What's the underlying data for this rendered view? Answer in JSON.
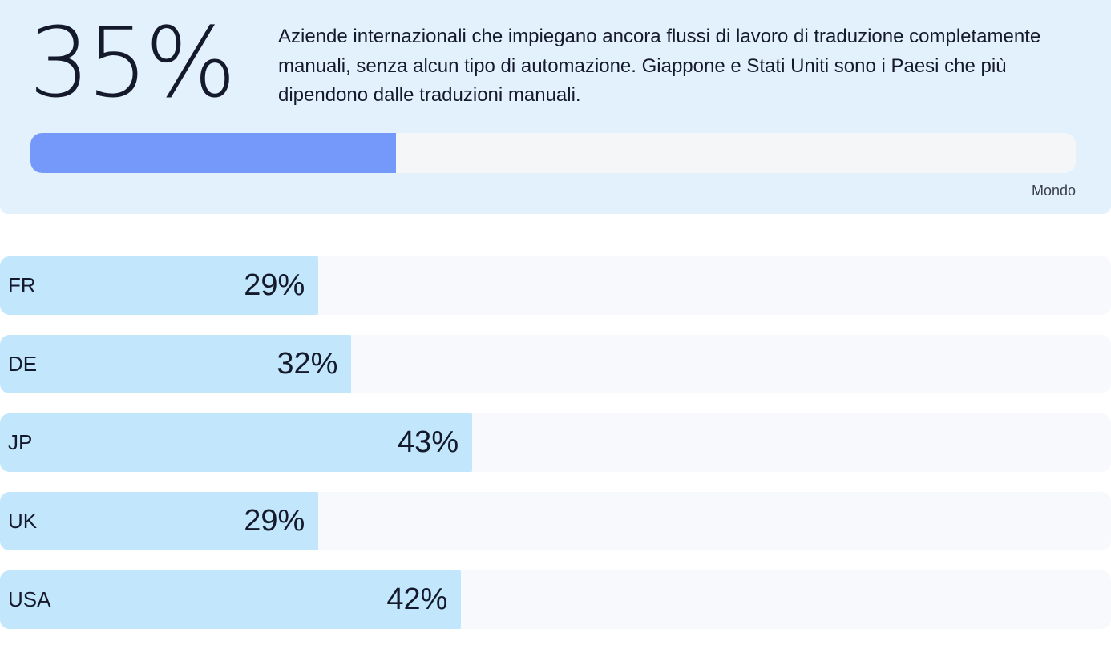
{
  "hero": {
    "percent_label": "35%",
    "value": 35,
    "description": "Aziende internazionali che impiegano ancora flussi di lavoro di traduzione completamente manuali, senza alcun tipo di automazione. Giappone e Stati Uniti sono i Paesi che più dipendono dalle traduzioni manuali.",
    "scope_label": "Mondo"
  },
  "colors": {
    "hero_background": "#e3f1fc",
    "hero_bar_fill": "#7499fb",
    "hero_bar_track": "#f5f6f8",
    "country_bar_fill": "#c2e6fb",
    "country_bar_track": "#f7f9fd",
    "text": "#141a2c"
  },
  "chart_data": [
    {
      "type": "bar",
      "categories": [
        "Mondo"
      ],
      "values": [
        35
      ],
      "ylim": [
        0,
        100
      ]
    },
    {
      "type": "bar",
      "categories": [
        "FR",
        "DE",
        "JP",
        "UK",
        "USA"
      ],
      "values": [
        29,
        32,
        43,
        29,
        42
      ],
      "value_labels": [
        "29%",
        "32%",
        "43%",
        "29%",
        "42%"
      ],
      "ylim": [
        0,
        100
      ]
    }
  ]
}
